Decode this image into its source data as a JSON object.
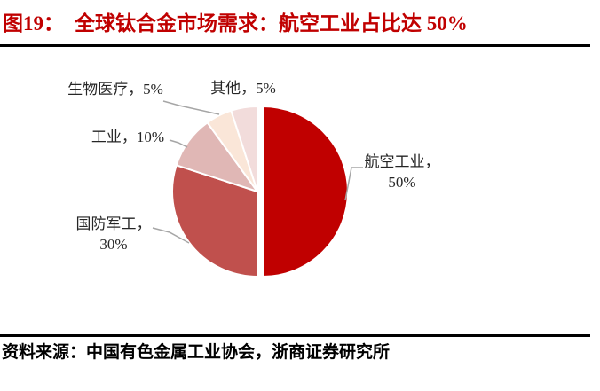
{
  "figure": {
    "title_prefix": "图19：",
    "title_main": "全球钛合金市场需求：航空工业占比达 50%",
    "source": "资料来源：中国有色金属工业协会，浙商证券研究所"
  },
  "chart_data": {
    "type": "pie",
    "title": "全球钛合金市场需求：航空工业占比达 50%",
    "categories": [
      "航空工业",
      "国防军工",
      "工业",
      "生物医疗",
      "其他"
    ],
    "values": [
      50,
      30,
      10,
      5,
      5
    ],
    "unit": "%",
    "colors": [
      "#C00000",
      "#C0504D",
      "#E0B7B5",
      "#FAE6D8",
      "#F2DCDB"
    ],
    "start_angle_deg": 0,
    "direction": "clockwise",
    "exploded_slice": "航空工业",
    "legend": "none",
    "label_position": "outside",
    "leader_line_color": "#A6A6A6",
    "labels": [
      {
        "lines": [
          "航空工业，",
          "50%"
        ]
      },
      {
        "lines": [
          "国防军工，",
          "30%"
        ]
      },
      {
        "lines": [
          "工业，10%"
        ]
      },
      {
        "lines": [
          "生物医疗，5%"
        ]
      },
      {
        "lines": [
          "其他，5%"
        ]
      }
    ]
  }
}
